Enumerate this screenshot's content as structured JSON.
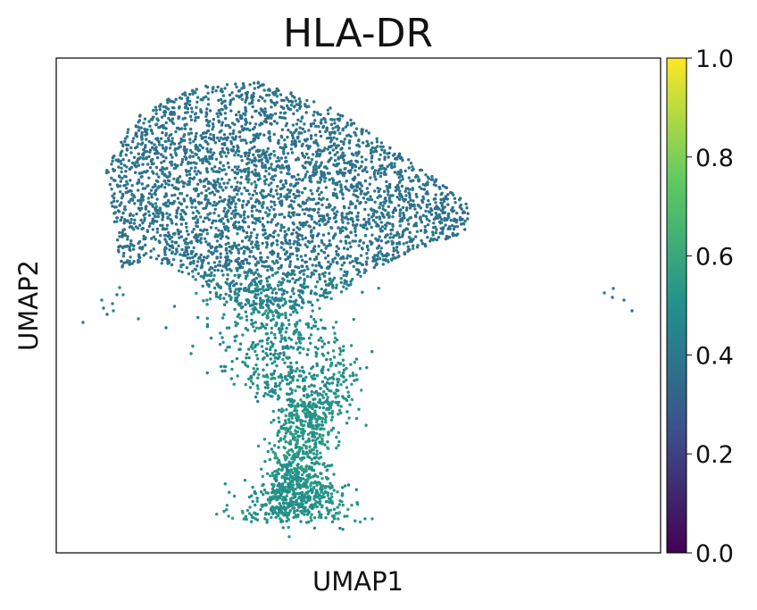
{
  "chart_data": {
    "type": "scatter",
    "title": "HLA-DR",
    "xlabel": "UMAP1",
    "ylabel": "UMAP2",
    "axis_ticks_shown": false,
    "grid": false,
    "colormap": "viridis",
    "colormap_stops": [
      "#440154",
      "#3b528b",
      "#21918c",
      "#5ec962",
      "#fde725"
    ],
    "colorbar": {
      "range": [
        0,
        1
      ],
      "tick_values": [
        0,
        0.2,
        0.4,
        0.6,
        0.8,
        1.0
      ],
      "tick_labels": [
        "0.0",
        "0.2",
        "0.4",
        "0.6",
        "0.8",
        "1.0"
      ]
    },
    "value_description": "HLA-DR expression per cell; upper cluster about 0.35–0.42, lower stalk about 0.45–0.58",
    "regions": [
      {
        "region": "upper-body",
        "approx_value": 0.38
      },
      {
        "region": "lower-stalk",
        "approx_value": 0.52
      },
      {
        "region": "left-outliers",
        "approx_value": 0.45
      },
      {
        "region": "right-outliers",
        "approx_value": 0.4
      }
    ]
  }
}
